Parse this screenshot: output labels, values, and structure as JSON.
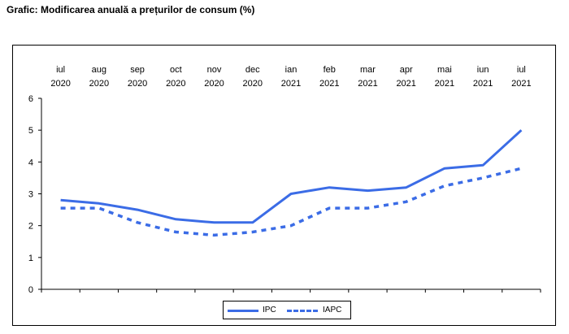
{
  "page": {
    "title": "Grafic: Modificarea anuală a prețurilor de consum (%)"
  },
  "colors": {
    "series": "#3b6ce6",
    "axis": "#000000"
  },
  "chart_data": {
    "type": "line",
    "title": "",
    "xlabel": "",
    "ylabel": "",
    "x_months": [
      "iul",
      "aug",
      "sep",
      "oct",
      "nov",
      "dec",
      "ian",
      "feb",
      "mar",
      "apr",
      "mai",
      "iun",
      "iul"
    ],
    "x_years": [
      "2020",
      "2020",
      "2020",
      "2020",
      "2020",
      "2020",
      "2021",
      "2021",
      "2021",
      "2021",
      "2021",
      "2021",
      "2021"
    ],
    "ylim": [
      0,
      6
    ],
    "yticks": [
      0,
      1,
      2,
      3,
      4,
      5,
      6
    ],
    "x_axis_position": "top",
    "grid": false,
    "legend": "bottom-center",
    "series": [
      {
        "name": "IPC",
        "style": "solid",
        "values": [
          2.8,
          2.7,
          2.5,
          2.2,
          2.1,
          2.1,
          3.0,
          3.2,
          3.1,
          3.2,
          3.8,
          3.9,
          5.0
        ]
      },
      {
        "name": "IAPC",
        "style": "dotted",
        "values": [
          2.55,
          2.55,
          2.1,
          1.8,
          1.7,
          1.8,
          2.0,
          2.55,
          2.55,
          2.75,
          3.25,
          3.5,
          3.8
        ]
      }
    ]
  }
}
